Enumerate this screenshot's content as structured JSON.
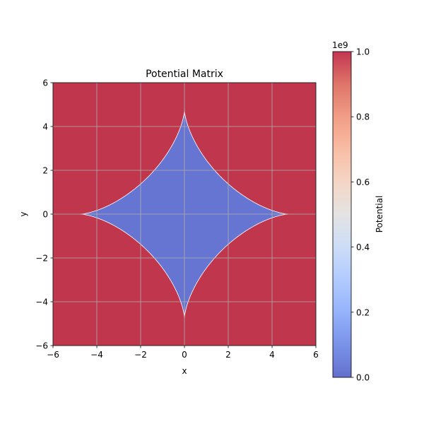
{
  "chart_data": {
    "type": "heatmap",
    "title": "Potential Matrix",
    "xlabel": "x",
    "ylabel": "y",
    "xlim": [
      -6,
      6
    ],
    "ylim": [
      -6,
      6
    ],
    "xticks": [
      -6,
      -4,
      -2,
      0,
      2,
      4,
      6
    ],
    "yticks": [
      -6,
      -4,
      -2,
      0,
      2,
      4,
      6
    ],
    "xtick_labels": [
      "−6",
      "−4",
      "−2",
      "0",
      "2",
      "4",
      "6"
    ],
    "ytick_labels": [
      "−6",
      "−4",
      "−2",
      "0",
      "2",
      "4",
      "6"
    ],
    "grid": true,
    "regions": [
      {
        "region": "outside",
        "value": 1000000000.0,
        "color": "#c0364c"
      },
      {
        "region": "astroid interior",
        "value": 0,
        "color": "#6674d2",
        "boundary": "|x|^(2/3) + |y|^(2/3) = 4.75^(2/3)",
        "extent": 4.75
      }
    ],
    "colorbar": {
      "label": "Potential",
      "offset_text": "1e9",
      "range": [
        0,
        1.0
      ],
      "ticks": [
        0.0,
        0.2,
        0.4,
        0.6,
        0.8,
        1.0
      ],
      "tick_labels": [
        "0.0",
        "0.2",
        "0.4",
        "0.6",
        "0.8",
        "1.0"
      ],
      "colormap": "coolwarm",
      "alpha": 0.8
    }
  }
}
